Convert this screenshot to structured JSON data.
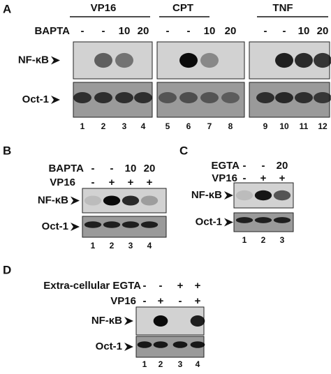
{
  "panel_a": {
    "label": "A",
    "groups": [
      "VP16",
      "CPT",
      "TNF"
    ],
    "treatment_label": "BAPTA",
    "treatment": [
      "-",
      "-",
      "10",
      "20",
      "-",
      "-",
      "10",
      "20",
      "-",
      "-",
      "10",
      "20"
    ],
    "rows": [
      "NF-κB",
      "Oct-1"
    ],
    "lanes": [
      "1",
      "2",
      "3",
      "4",
      "5",
      "6",
      "7",
      "8",
      "9",
      "10",
      "11",
      "12"
    ]
  },
  "panel_b": {
    "label": "B",
    "treatment_label": "BAPTA",
    "treatment": [
      "-",
      "-",
      "10",
      "20"
    ],
    "stimulus_label": "VP16",
    "stimulus": [
      "-",
      "+",
      "+",
      "+"
    ],
    "rows": [
      "NF-κB",
      "Oct-1"
    ],
    "lanes": [
      "1",
      "2",
      "3",
      "4"
    ]
  },
  "panel_c": {
    "label": "C",
    "treatment_label": "EGTA",
    "treatment": [
      "-",
      "-",
      "20"
    ],
    "stimulus_label": "VP16",
    "stimulus": [
      "-",
      "+",
      "+"
    ],
    "rows": [
      "NF-κB",
      "Oct-1"
    ],
    "lanes": [
      "1",
      "2",
      "3"
    ]
  },
  "panel_d": {
    "label": "D",
    "treatment_label": "Extra-cellular EGTA",
    "treatment": [
      "-",
      "-",
      "+",
      "+"
    ],
    "stimulus_label": "VP16",
    "stimulus": [
      "-",
      "+",
      "-",
      "+"
    ],
    "rows": [
      "NF-κB",
      "Oct-1"
    ],
    "lanes": [
      "1",
      "2",
      "3",
      "4"
    ]
  }
}
